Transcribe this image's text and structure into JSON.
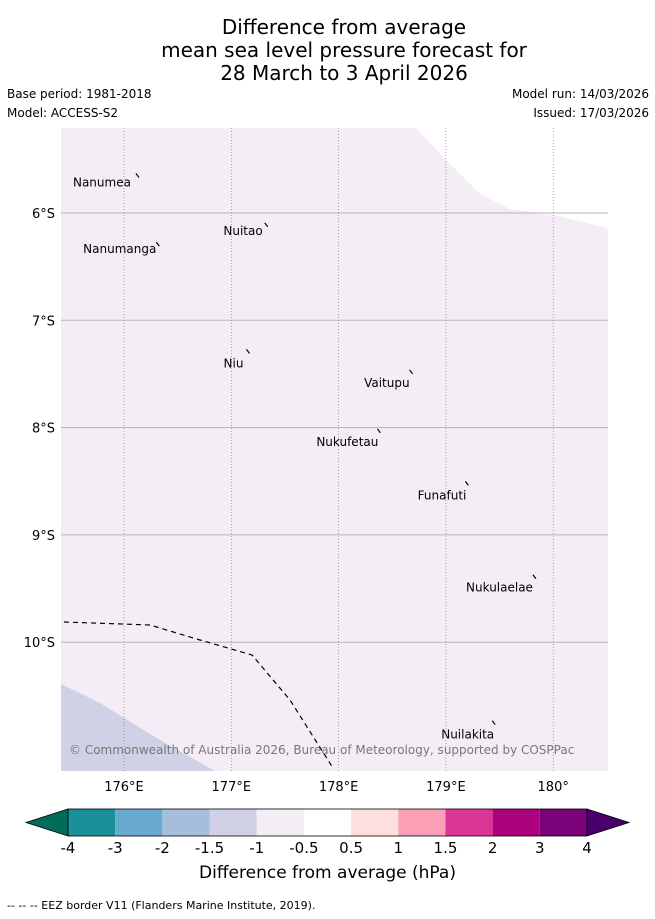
{
  "title_lines": [
    "Difference from average",
    "mean sea level pressure forecast for",
    "28 March to 3 April 2026"
  ],
  "meta": {
    "base_period": "Base period: 1981-2018",
    "model": "Model: ACCESS-S2",
    "model_run": "Model run: 14/03/2026",
    "issued": "Issued: 17/03/2026"
  },
  "map": {
    "lon_range": [
      175.4,
      180.5
    ],
    "lat_range": [
      -11.2,
      -5.2
    ],
    "lon_ticks": [
      {
        "value": 176,
        "label": "176°E"
      },
      {
        "value": 177,
        "label": "177°E"
      },
      {
        "value": 178,
        "label": "178°E"
      },
      {
        "value": 179,
        "label": "179°E"
      },
      {
        "value": 180,
        "label": "180°"
      }
    ],
    "lat_ticks": [
      {
        "value": -6,
        "label": "6°S"
      },
      {
        "value": -7,
        "label": "7°S"
      },
      {
        "value": -8,
        "label": "8°S"
      },
      {
        "value": -9,
        "label": "9°S"
      },
      {
        "value": -10,
        "label": "10°S"
      }
    ],
    "islands": [
      {
        "name": "Nanumea",
        "lon": 176.13,
        "lat": -5.65
      },
      {
        "name": "Nuitao",
        "lon": 177.33,
        "lat": -6.11
      },
      {
        "name": "Nanumanga",
        "lon": 176.32,
        "lat": -6.29
      },
      {
        "name": "Niu",
        "lon": 177.16,
        "lat": -7.29
      },
      {
        "name": "Vaitupu",
        "lon": 178.68,
        "lat": -7.48
      },
      {
        "name": "Nukufetau",
        "lon": 178.38,
        "lat": -8.03
      },
      {
        "name": "Funafuti",
        "lon": 179.2,
        "lat": -8.52
      },
      {
        "name": "Nukulaelae",
        "lon": 179.83,
        "lat": -9.39
      },
      {
        "name": "Nuilakita",
        "lon": 179.45,
        "lat": -10.75
      }
    ],
    "colors": {
      "background_class": "#f4edf6",
      "lower_class": "#d0d1e6",
      "upper_white": "#ffffff"
    },
    "copyright": "© Commonwealth of Australia 2026, Bureau of Meteorology, supported by COSPPac"
  },
  "colorbar": {
    "title": "Difference from average (hPa)",
    "ticks": [
      "-4",
      "-3",
      "-2",
      "-1.5",
      "-1",
      "-0.5",
      "0.5",
      "1",
      "1.5",
      "2",
      "3",
      "4"
    ],
    "colors": [
      "#1c9099",
      "#67a9cf",
      "#a6bddb",
      "#d0d1e6",
      "#f4edf6",
      "#ffffff",
      "#fde0dd",
      "#fa9fb5",
      "#dd3497",
      "#ae017e",
      "#7a0177"
    ],
    "under_color": "#016c59",
    "over_color": "#49006a"
  },
  "footnote": "-- -- -- EEZ border V11 (Flanders Marine Institute, 2019)."
}
